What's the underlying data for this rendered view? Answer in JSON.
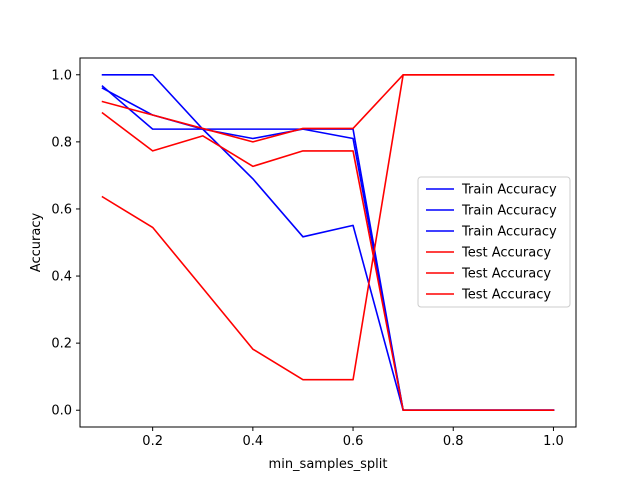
{
  "chart_data": {
    "type": "line",
    "xlabel": "min_samples_split",
    "ylabel": "Accuracy",
    "xlim": [
      0.055,
      1.045
    ],
    "ylim": [
      -0.05,
      1.05
    ],
    "xticks": [
      0.2,
      0.4,
      0.6,
      0.8,
      1.0
    ],
    "xtick_labels": [
      "0.2",
      "0.4",
      "0.6",
      "0.8",
      "1.0"
    ],
    "yticks": [
      0.0,
      0.2,
      0.4,
      0.6,
      0.8,
      1.0
    ],
    "ytick_labels": [
      "0.0",
      "0.2",
      "0.4",
      "0.6",
      "0.8",
      "1.0"
    ],
    "grid": false,
    "legend_position": "center-right",
    "x": [
      0.1,
      0.2,
      0.3,
      0.4,
      0.5,
      0.6,
      0.7,
      0.8,
      0.9,
      1.0
    ],
    "series": [
      {
        "name": "Train Accuracy",
        "color": "#0000ff",
        "values": [
          1.0,
          1.0,
          0.838,
          0.838,
          0.838,
          0.838,
          0.0,
          0.0,
          0.0,
          0.0
        ]
      },
      {
        "name": "Train Accuracy",
        "color": "#0000ff",
        "values": [
          0.966,
          0.838,
          0.838,
          0.81,
          0.838,
          0.81,
          0.0,
          0.0,
          0.0,
          0.0
        ]
      },
      {
        "name": "Train Accuracy",
        "color": "#0000ff",
        "values": [
          0.96,
          0.88,
          0.838,
          0.69,
          0.517,
          0.551,
          0.0,
          0.0,
          0.0,
          0.0
        ]
      },
      {
        "name": "Test Accuracy",
        "color": "#ff0000",
        "values": [
          0.886,
          0.773,
          0.818,
          0.727,
          0.773,
          0.773,
          0.0,
          0.0,
          0.0,
          0.0
        ]
      },
      {
        "name": "Test Accuracy",
        "color": "#ff0000",
        "values": [
          0.92,
          0.88,
          0.84,
          0.8,
          0.84,
          0.84,
          1.0,
          1.0,
          1.0,
          1.0
        ]
      },
      {
        "name": "Test Accuracy",
        "color": "#ff0000",
        "values": [
          0.636,
          0.545,
          0.364,
          0.182,
          0.091,
          0.091,
          1.0,
          1.0,
          1.0,
          1.0
        ]
      }
    ]
  }
}
